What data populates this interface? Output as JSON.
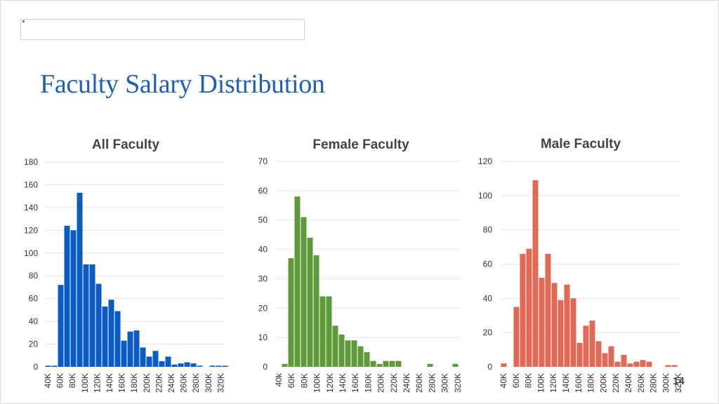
{
  "slide": {
    "title": "Faculty Salary Distribution",
    "page_number": "14"
  },
  "chart_data": [
    {
      "type": "bar",
      "title": "All Faculty",
      "color": "#0a5cc2",
      "ylim": [
        0,
        180
      ],
      "yticks": [
        0,
        20,
        40,
        60,
        80,
        100,
        120,
        140,
        160,
        180
      ],
      "xtick_labels": [
        "40K",
        "60K",
        "80K",
        "100K",
        "120K",
        "140K",
        "160K",
        "180K",
        "200K",
        "220K",
        "240K",
        "260K",
        "280K",
        "300K",
        "320K"
      ],
      "x_start": 40,
      "x_step": 10,
      "values": [
        1,
        1,
        72,
        124,
        120,
        153,
        90,
        90,
        73,
        53,
        59,
        49,
        23,
        31,
        32,
        17,
        9,
        14,
        5,
        9,
        2,
        3,
        4,
        3,
        1,
        0,
        1,
        1,
        1
      ],
      "grid": true
    },
    {
      "type": "bar",
      "title": "Female Faculty",
      "color": "#5e9a3a",
      "ylim": [
        0,
        70
      ],
      "yticks": [
        0,
        10,
        20,
        30,
        40,
        50,
        60,
        70
      ],
      "xtick_labels": [
        "40k",
        "60K",
        "80K",
        "100K",
        "120K",
        "140K",
        "160K",
        "180K",
        "200K",
        "220K",
        "240K",
        "260K",
        "280K",
        "300K",
        "320K"
      ],
      "x_start": 40,
      "x_step": 10,
      "values": [
        1,
        37,
        58,
        51,
        44,
        38,
        24,
        24,
        14,
        11,
        9,
        9,
        7,
        5,
        2,
        1,
        2,
        2,
        2,
        0,
        0,
        0,
        0,
        1,
        0,
        0,
        0,
        1
      ],
      "grid": true
    },
    {
      "type": "bar",
      "title": "Male Faculty",
      "color": "#e06a55",
      "ylim": [
        0,
        120
      ],
      "yticks": [
        0,
        20,
        40,
        60,
        80,
        100,
        120
      ],
      "xtick_labels": [
        "40K",
        "60K",
        "80K",
        "100K",
        "120K",
        "140K",
        "160K",
        "180K",
        "200K",
        "220K",
        "240K",
        "260K",
        "280K",
        "300K",
        "320K"
      ],
      "x_start": 40,
      "x_step": 10,
      "values": [
        2,
        0,
        35,
        66,
        69,
        109,
        52,
        66,
        49,
        39,
        48,
        40,
        14,
        24,
        27,
        15,
        8,
        12,
        3,
        7,
        2,
        3,
        4,
        3,
        0,
        0,
        1,
        1
      ],
      "grid": true
    }
  ]
}
